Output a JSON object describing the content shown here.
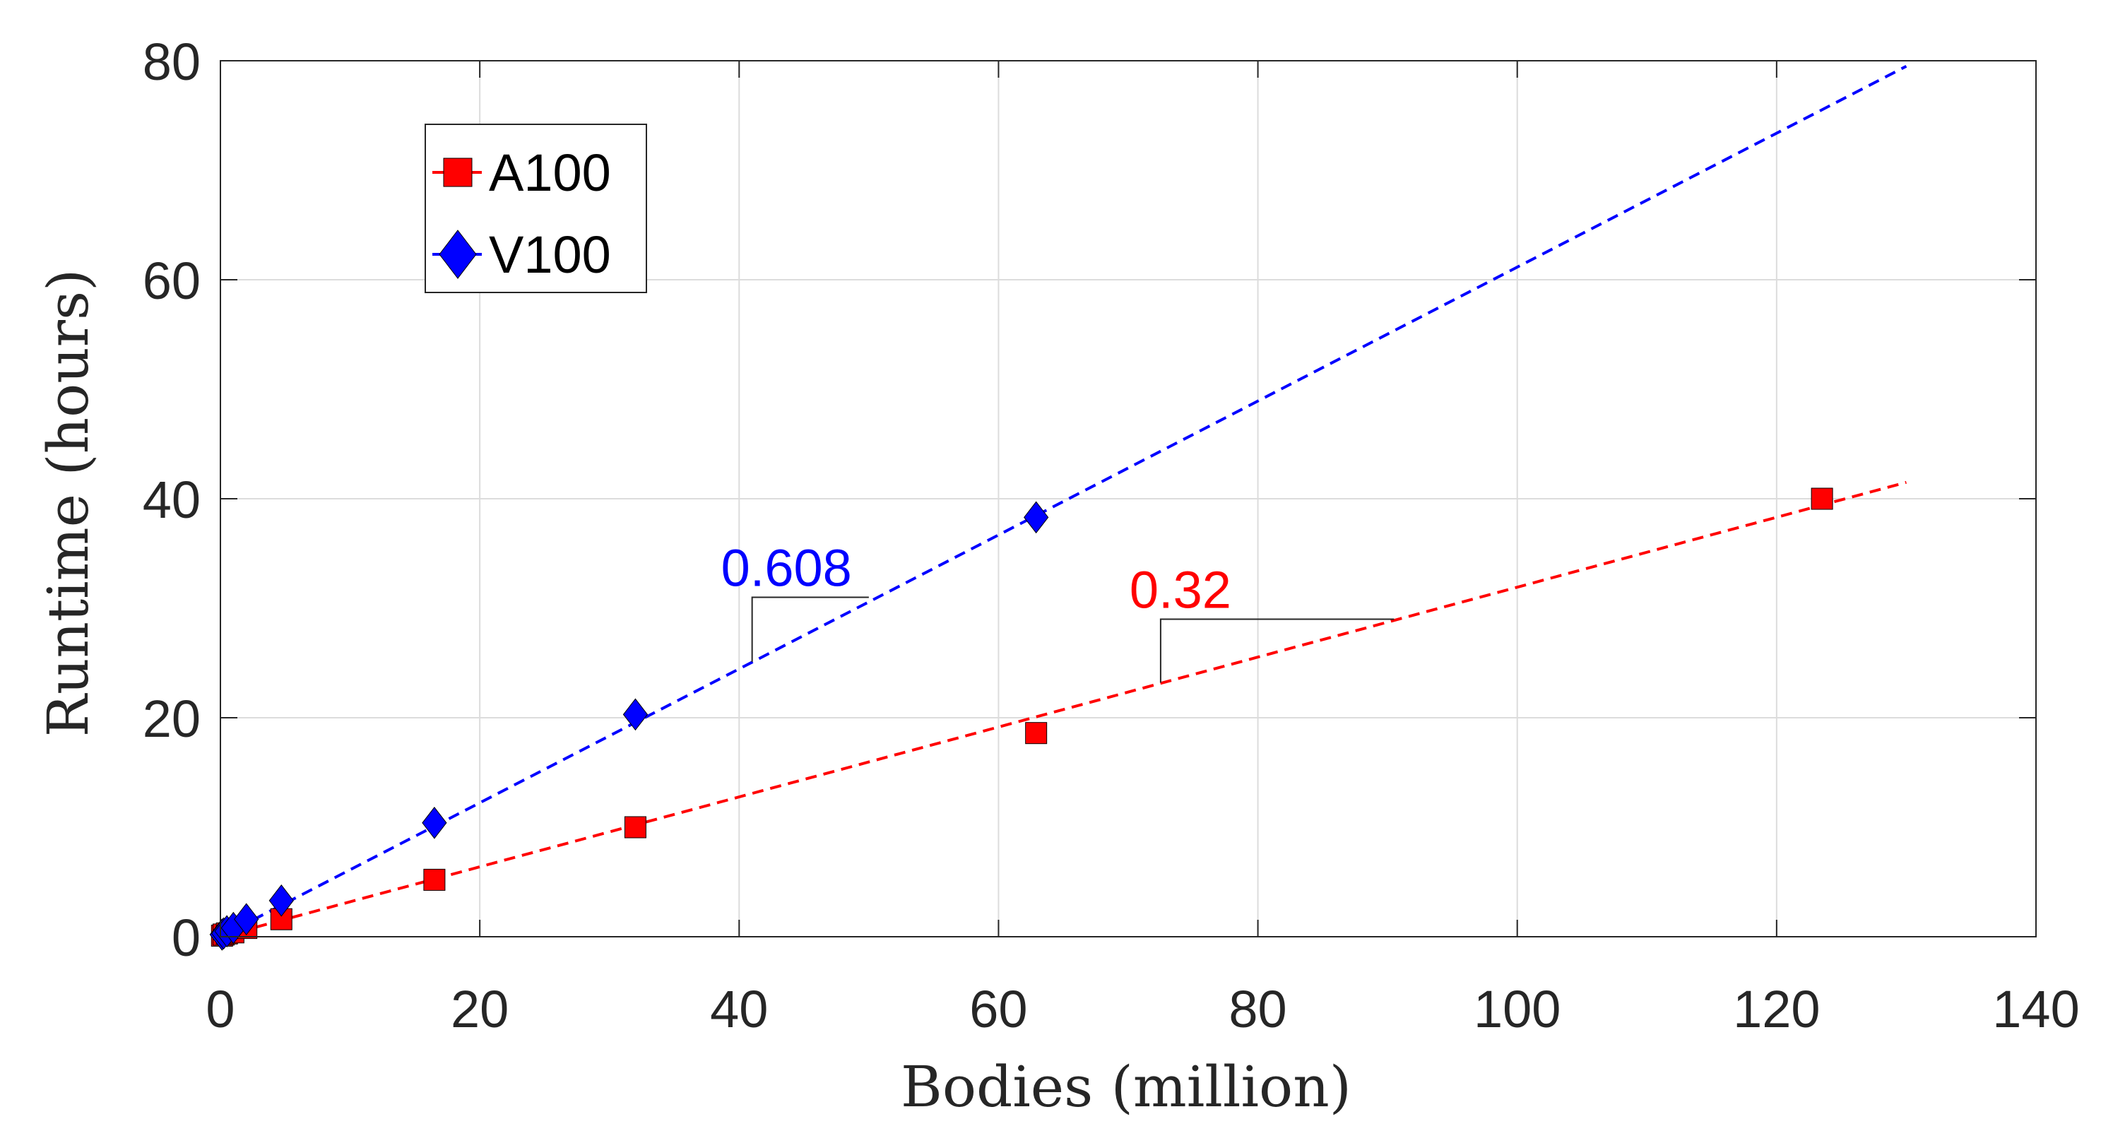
{
  "chart_data": {
    "type": "scatter",
    "title": "",
    "xlabel": "Bodies (million)",
    "ylabel": "Runtime (hours)",
    "xlim": [
      0,
      140
    ],
    "ylim": [
      0,
      80
    ],
    "xticks": [
      0,
      20,
      40,
      60,
      80,
      100,
      120,
      140
    ],
    "yticks": [
      0,
      20,
      40,
      60,
      80
    ],
    "xtick_labels": [
      "0",
      "20",
      "40",
      "60",
      "80",
      "100",
      "120",
      "140"
    ],
    "ytick_labels": [
      "0",
      "20",
      "40",
      "60",
      "80"
    ],
    "grid": true,
    "legend_position": "top-left",
    "series": [
      {
        "name": "A100",
        "color": "#ff0000",
        "marker": "square",
        "x": [
          0.125,
          0.25,
          0.5,
          1,
          2,
          4.7,
          16.5,
          32,
          62.9,
          123.5
        ],
        "y": [
          0.1,
          0.2,
          0.3,
          0.4,
          0.8,
          1.6,
          5.2,
          10,
          18.6,
          40
        ],
        "fit": {
          "slope": 0.32,
          "x": [
            0,
            130
          ],
          "y": [
            0,
            41.5
          ]
        },
        "slope_annotation": {
          "label": "0.32",
          "x0": 72.5,
          "x1": 90.5,
          "y_low": 23.2,
          "y_high": 29.0
        }
      },
      {
        "name": "V100",
        "color": "#0000ff",
        "marker": "diamond",
        "x": [
          0.125,
          0.25,
          0.5,
          1,
          2,
          4.7,
          16.5,
          32,
          62.9
        ],
        "y": [
          0.2,
          0.3,
          0.5,
          0.8,
          1.6,
          3.3,
          10.4,
          20.3,
          38.3
        ],
        "fit": {
          "slope": 0.608,
          "x": [
            0,
            130
          ],
          "y": [
            0,
            79.5
          ]
        },
        "slope_annotation": {
          "label": "0.608",
          "x0": 41,
          "x1": 50,
          "y_low": 25.1,
          "y_high": 31.0
        }
      }
    ]
  }
}
